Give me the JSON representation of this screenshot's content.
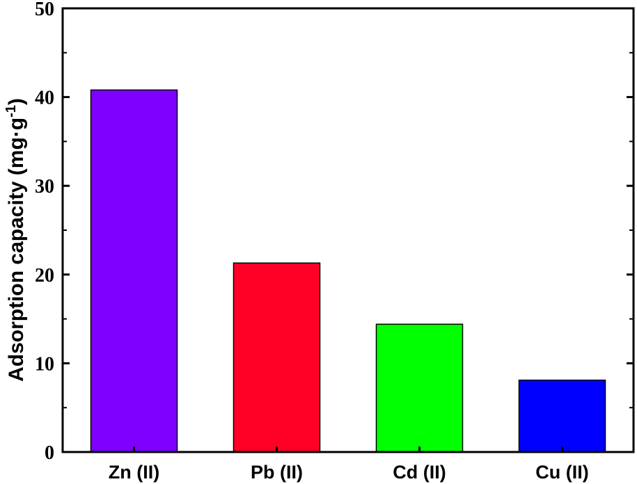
{
  "chart_data": {
    "type": "bar",
    "title": "",
    "xlabel": "",
    "ylabel": "Adsorption capacity (mg·g",
    "ylabel_superscript": "-1",
    "ylabel_close": ")",
    "categories": [
      "Zn (II)",
      "Pb (II)",
      "Cd (II)",
      "Cu (II)"
    ],
    "values": [
      40.8,
      21.3,
      14.4,
      8.1
    ],
    "colors": [
      "#7f00ff",
      "#ff0027",
      "#00ff00",
      "#0000ff"
    ],
    "ylim": [
      0,
      50
    ],
    "yticks": [
      0,
      10,
      20,
      30,
      40,
      50
    ],
    "ytick_labels": [
      "0",
      "10",
      "20",
      "30",
      "40",
      "50"
    ],
    "grid": false,
    "legend": "none"
  }
}
